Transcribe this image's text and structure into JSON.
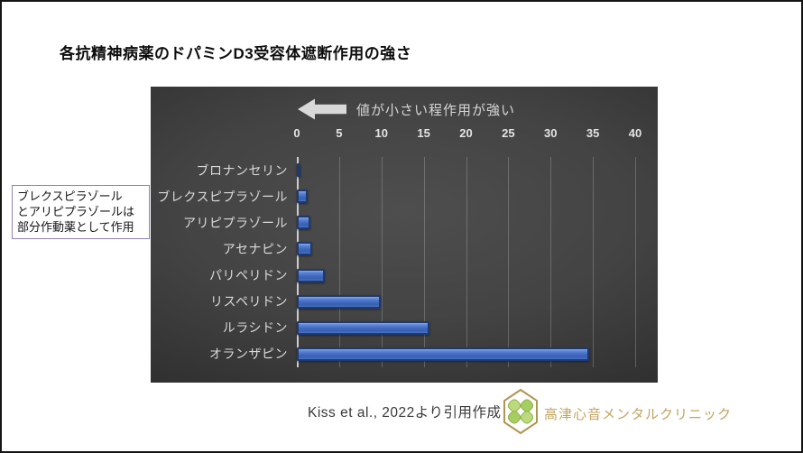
{
  "page": {
    "title": "各抗精神病薬のドパミンD3受容体遮断作用の強さ"
  },
  "annotation_box": {
    "lines": [
      "ブレクスピラゾール",
      "とアリピプラゾールは",
      "部分作動薬として作用"
    ]
  },
  "chart_data": {
    "type": "bar",
    "orientation": "horizontal",
    "title": "各抗精神病薬のドパミンD3受容体遮断作用の強さ",
    "annotation": "値が小さい程作用が強い",
    "categories": [
      "ブロナンセリン",
      "ブレクスピプラゾール",
      "アリピプラゾール",
      "アセナピン",
      "パリペリドン",
      "リスペリドン",
      "ルラシドン",
      "オランザピン"
    ],
    "values": [
      0.3,
      1.3,
      1.6,
      1.8,
      3.3,
      9.9,
      15.7,
      34.6
    ],
    "x_ticks": [
      0,
      5,
      10,
      15,
      20,
      25,
      30,
      35,
      40
    ],
    "xlim": [
      0,
      40
    ],
    "grid": true,
    "axis_position": "top",
    "bar_color": "#4472c4",
    "bar_border_color": "#1f3864",
    "panel_background": "#3f3f3f",
    "label_color": "#d9d9d9"
  },
  "footer": {
    "citation": "Kiss et al., 2022より引用作成",
    "logo": "clover-hexagon-logo",
    "clinic_name": "高津心音メンタルクリニック",
    "clinic_color": "#c3a35f"
  }
}
